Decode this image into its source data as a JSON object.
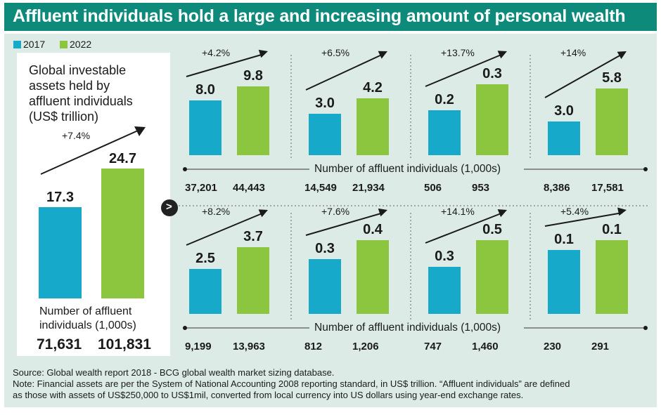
{
  "title": "Affluent individuals hold a large and increasing amount of personal wealth",
  "legend": [
    {
      "label": "2017",
      "color": "#17a9c9"
    },
    {
      "label": "2022",
      "color": "#8cc63f"
    }
  ],
  "colors": {
    "y2017": "#17a9c9",
    "y2022": "#8cc63f",
    "title_bg": "#0e8a7b",
    "panel_bg": "#dcebe6"
  },
  "main_panel": {
    "title_lines": [
      "Global investable",
      "assets held by",
      "affluent individuals",
      "(US$ trillion)"
    ],
    "growth": "+7.4%",
    "value_2017": "17.3",
    "value_2022": "24.7",
    "count_label_lines": [
      "Number of affluent",
      "individuals (1,000s)"
    ],
    "count_2017": "71,631",
    "count_2022": "101,831"
  },
  "axis_label": "Number of affluent individuals (1,000s)",
  "chart_data": {
    "type": "bar",
    "title": "Affluent individuals hold a large and increasing amount of personal wealth",
    "unit": "US$ trillion",
    "series": [
      {
        "name": "2017"
      },
      {
        "name": "2022"
      }
    ],
    "panels": [
      {
        "growth": "+7.4%",
        "v2017": 17.3,
        "v2022": 24.7,
        "n2017": "71,631",
        "n2022": "101,831"
      },
      {
        "growth": "+4.2%",
        "v2017": 8.0,
        "v2022": 9.8,
        "n2017": "37,201",
        "n2022": "44,443"
      },
      {
        "growth": "+6.5%",
        "v2017": 3.0,
        "v2022": 4.2,
        "n2017": "14,549",
        "n2022": "21,934"
      },
      {
        "growth": "+13.7%",
        "v2017": 0.2,
        "v2022": 0.3,
        "n2017": "506",
        "n2022": "953"
      },
      {
        "growth": "+14%",
        "v2017": 3.0,
        "v2022": 5.8,
        "n2017": "8,386",
        "n2022": "17,581"
      },
      {
        "growth": "+8.2%",
        "v2017": 2.5,
        "v2022": 3.7,
        "n2017": "9,199",
        "n2022": "13,963"
      },
      {
        "growth": "+7.6%",
        "v2017": 0.3,
        "v2022": 0.4,
        "n2017": "812",
        "n2022": "1,206"
      },
      {
        "growth": "+14.1%",
        "v2017": 0.3,
        "v2022": 0.5,
        "n2017": "747",
        "n2022": "1,460"
      },
      {
        "growth": "+5.4%",
        "v2017": 0.1,
        "v2022": 0.1,
        "n2017": "230",
        "n2022": "291"
      }
    ],
    "small_panels": [
      {
        "growth": "+4.2%",
        "v2017": "8.0",
        "v2022": "9.8",
        "h2017": 0.56,
        "h2022": 0.7,
        "n2017": "37,201",
        "n2022": "44,443"
      },
      {
        "growth": "+6.5%",
        "v2017": "3.0",
        "v2022": "4.2",
        "h2017": 0.42,
        "h2022": 0.58,
        "n2017": "14,549",
        "n2022": "21,934"
      },
      {
        "growth": "+13.7%",
        "v2017": "0.2",
        "v2022": "0.3",
        "h2017": 0.46,
        "h2022": 0.72,
        "n2017": "506",
        "n2022": "953"
      },
      {
        "growth": "+14%",
        "v2017": "3.0",
        "v2022": "5.8",
        "h2017": 0.34,
        "h2022": 0.68,
        "n2017": "8,386",
        "n2022": "17,581"
      },
      {
        "growth": "+8.2%",
        "v2017": "2.5",
        "v2022": "3.7",
        "h2017": 0.46,
        "h2022": 0.68,
        "n2017": "9,199",
        "n2022": "13,963"
      },
      {
        "growth": "+7.6%",
        "v2017": "0.3",
        "v2022": "0.4",
        "h2017": 0.56,
        "h2022": 0.75,
        "n2017": "812",
        "n2022": "1,206"
      },
      {
        "growth": "+14.1%",
        "v2017": "0.3",
        "v2022": "0.5",
        "h2017": 0.48,
        "h2022": 0.75,
        "n2017": "747",
        "n2022": "1,460"
      },
      {
        "growth": "+5.4%",
        "v2017": "0.1",
        "v2022": "0.1",
        "h2017": 0.65,
        "h2022": 0.75,
        "n2017": "230",
        "n2022": "291"
      }
    ]
  },
  "source_lines": [
    "Source: Global wealth report 2018 - BCG global wealth market sizing database.",
    "Note: Financial assets are per the System of National Accounting 2008 reporting standard, in US$ trillion. “Affluent individuals” are defined",
    "as those with assets of US$250,000 to US$1mil, converted from local currency into US dollars using year-end exchange rates."
  ]
}
